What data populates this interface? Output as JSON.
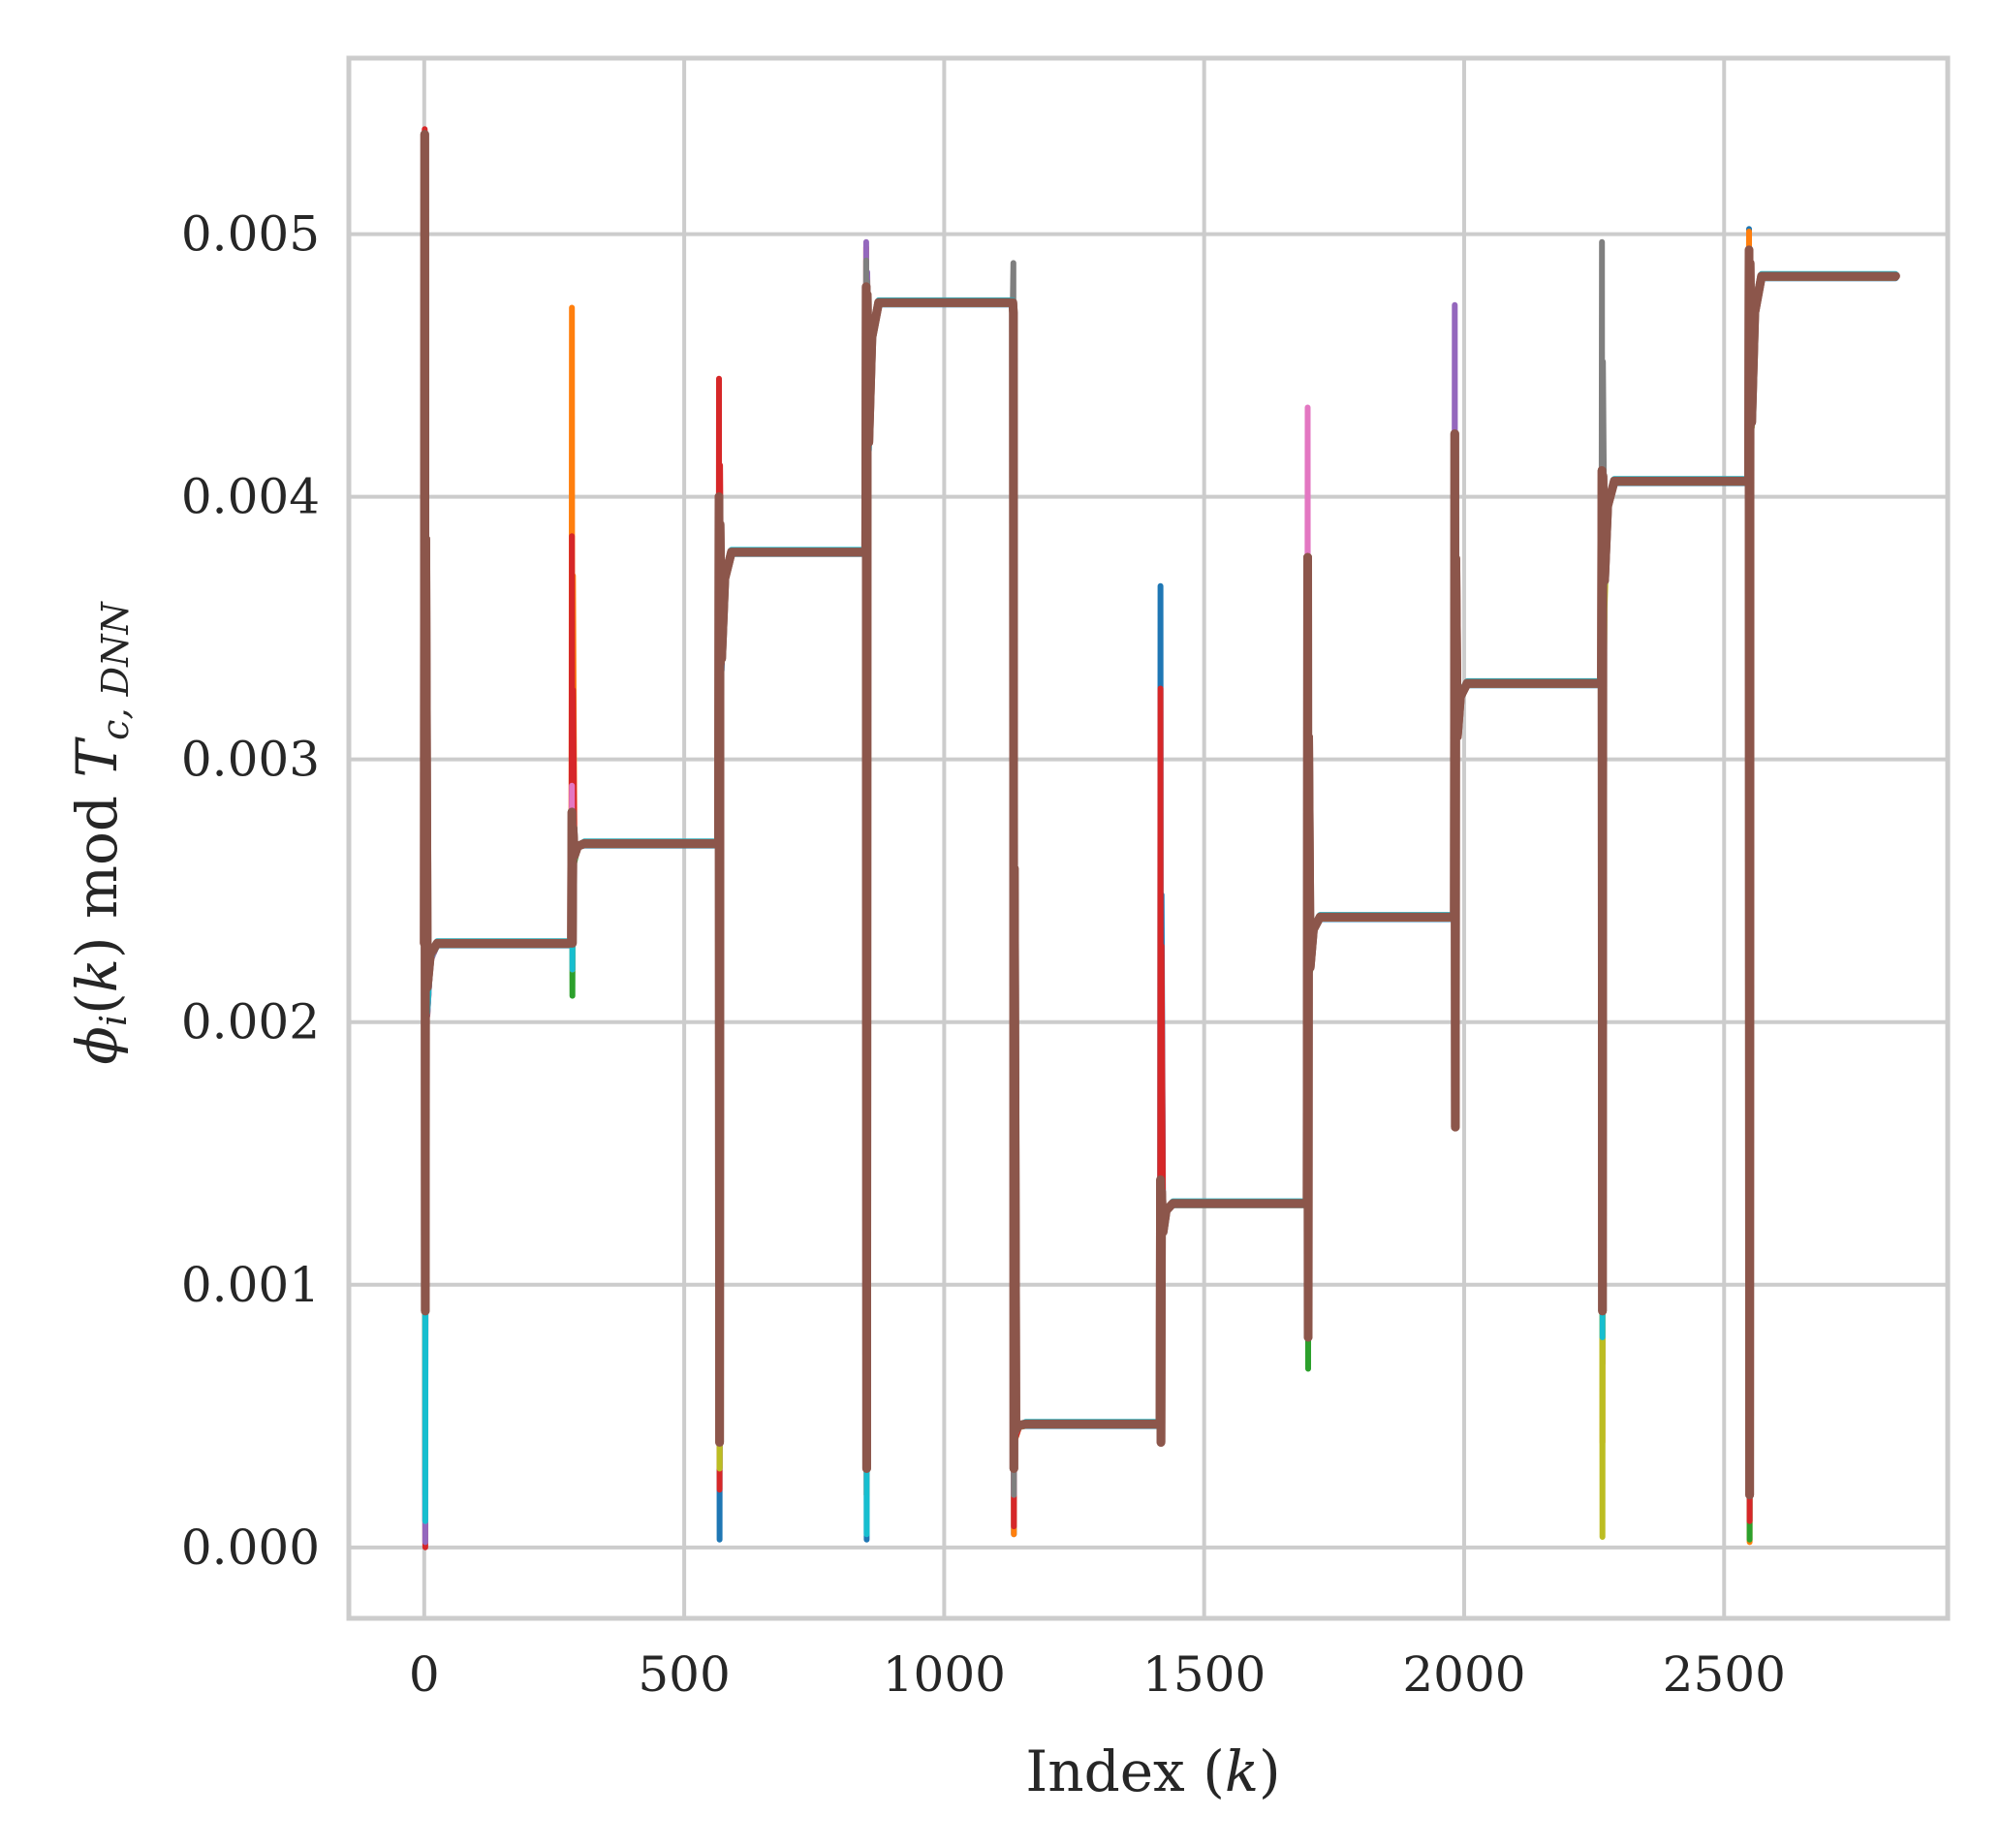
{
  "chart_data": {
    "type": "line",
    "title": "",
    "xlabel": "Index (k)",
    "ylabel": "φ_i(k) mod T_c,DNN",
    "xlabel_parts": {
      "pre": "Index (",
      "var": "k",
      "post": ")"
    },
    "ylabel_parts": {
      "phi": "ϕ",
      "i": "i",
      "k": "k",
      "mod": "mod",
      "T": "T",
      "sub": "c, DNN"
    },
    "xlim": [
      -145,
      2930
    ],
    "ylim": [
      -0.00027,
      0.00567
    ],
    "xticks": [
      0,
      500,
      1000,
      1500,
      2000,
      2500
    ],
    "xtick_labels": [
      "0",
      "500",
      "1000",
      "1500",
      "2000",
      "2500"
    ],
    "yticks": [
      0.0,
      0.001,
      0.002,
      0.003,
      0.004,
      0.005
    ],
    "ytick_labels": [
      "0.000",
      "0.001",
      "0.002",
      "0.003",
      "0.004",
      "0.005"
    ],
    "grid": true,
    "legend": "none",
    "segments": [
      {
        "x_start": 0,
        "x_end": 283,
        "level": 0.0023
      },
      {
        "x_start": 283,
        "x_end": 566,
        "level": 0.00268
      },
      {
        "x_start": 566,
        "x_end": 849,
        "level": 0.00379
      },
      {
        "x_start": 849,
        "x_end": 1132,
        "level": 0.00474
      },
      {
        "x_start": 1132,
        "x_end": 1415,
        "level": 0.00047
      },
      {
        "x_start": 1415,
        "x_end": 1698,
        "level": 0.00131
      },
      {
        "x_start": 1698,
        "x_end": 1981,
        "level": 0.0024
      },
      {
        "x_start": 1981,
        "x_end": 2264,
        "level": 0.00329
      },
      {
        "x_start": 2264,
        "x_end": 2547,
        "level": 0.00406
      },
      {
        "x_start": 2547,
        "x_end": 2830,
        "level": 0.00484
      }
    ],
    "series": [
      {
        "color": "#1f77b4",
        "transients": [
          [
            0.0001,
            0.0028
          ],
          [
            0.0022,
            0.0027
          ],
          [
            3e-05,
            0.0035
          ],
          [
            3e-05,
            0.0048
          ],
          [
            5e-05,
            0.004
          ],
          [
            0.0006,
            0.00366
          ],
          [
            0.0013,
            0.0025
          ],
          [
            0.0024,
            0.0033
          ],
          [
            0.0007,
            0.0041
          ],
          [
            0.0001,
            0.00502
          ]
        ]
      },
      {
        "color": "#ff7f0e",
        "transients": [
          [
            0.0003,
            0.00472
          ],
          [
            0.0022,
            0.00472
          ],
          [
            0.0003,
            0.0039
          ],
          [
            0.0002,
            0.00495
          ],
          [
            5e-05,
            0.0047
          ],
          [
            0.0005,
            0.0015
          ],
          [
            0.0012,
            0.0026
          ],
          [
            0.0022,
            0.0034
          ],
          [
            0.0004,
            0.0041
          ],
          [
            2e-05,
            0.00501
          ]
        ]
      },
      {
        "color": "#2ca02c",
        "transients": [
          [
            0.0002,
            0.0044
          ],
          [
            0.0021,
            0.0028
          ],
          [
            0.0003,
            0.0038
          ],
          [
            0.0004,
            0.0048
          ],
          [
            0.0003,
            0.004
          ],
          [
            0.0006,
            0.0014
          ],
          [
            0.00068,
            0.0026
          ],
          [
            0.0023,
            0.0034
          ],
          [
            0.0018,
            0.00432
          ],
          [
            3e-05,
            0.0046
          ]
        ]
      },
      {
        "color": "#d62728",
        "transients": [
          [
            0.0,
            0.0054
          ],
          [
            0.0022,
            0.00385
          ],
          [
            0.00022,
            0.00445
          ],
          [
            0.0002,
            0.0048
          ],
          [
            8e-05,
            0.0047
          ],
          [
            0.00048,
            0.00327
          ],
          [
            0.0015,
            0.0025
          ],
          [
            0.0026,
            0.0033
          ],
          [
            0.0009,
            0.0041
          ],
          [
            0.0001,
            0.0049
          ]
        ]
      },
      {
        "color": "#9467bd",
        "transients": [
          [
            2e-05,
            0.0035
          ],
          [
            0.0022,
            0.0028
          ],
          [
            0.0004,
            0.0039
          ],
          [
            0.0003,
            0.00497
          ],
          [
            0.0002,
            0.0046
          ],
          [
            0.0005,
            0.0014
          ],
          [
            0.0011,
            0.0027
          ],
          [
            0.0024,
            0.00473
          ],
          [
            0.0009,
            0.0043
          ],
          [
            0.0002,
            0.0049
          ]
        ]
      },
      {
        "color": "#8c564b",
        "transients": [
          [
            0.0009,
            0.00538
          ],
          [
            0.0023,
            0.0028
          ],
          [
            0.0004,
            0.004
          ],
          [
            0.0003,
            0.0048
          ],
          [
            0.0003,
            0.0047
          ],
          [
            0.0004,
            0.0014
          ],
          [
            0.0008,
            0.00377
          ],
          [
            0.0016,
            0.00424
          ],
          [
            0.0009,
            0.0041
          ],
          [
            0.0002,
            0.00494
          ]
        ]
      },
      {
        "color": "#e377c2",
        "transients": [
          [
            0.0001,
            0.003
          ],
          [
            0.0022,
            0.0029
          ],
          [
            0.0004,
            0.0038
          ],
          [
            0.0006,
            0.0048
          ],
          [
            0.0004,
            0.0046
          ],
          [
            0.0005,
            0.0013
          ],
          [
            0.001,
            0.00434
          ],
          [
            0.0022,
            0.0033
          ],
          [
            0.0008,
            0.0041
          ],
          [
            0.0002,
            0.0048
          ]
        ]
      },
      {
        "color": "#7f7f7f",
        "transients": [
          [
            0.0004,
            0.0032
          ],
          [
            0.0022,
            0.0028
          ],
          [
            0.0005,
            0.0039
          ],
          [
            0.0004,
            0.0049
          ],
          [
            0.0002,
            0.00489
          ],
          [
            0.0006,
            0.0013
          ],
          [
            0.0013,
            0.0025
          ],
          [
            0.0023,
            0.0033
          ],
          [
            0.001,
            0.00497
          ],
          [
            0.0003,
            0.0049
          ]
        ]
      },
      {
        "color": "#bcbd22",
        "transients": [
          [
            0.0003,
            0.003
          ],
          [
            0.0022,
            0.0028
          ],
          [
            0.0003,
            0.0039
          ],
          [
            0.0004,
            0.0048
          ],
          [
            0.0003,
            0.0047
          ],
          [
            0.0005,
            0.0014
          ],
          [
            0.0012,
            0.0025
          ],
          [
            0.0022,
            0.0033
          ],
          [
            4e-05,
            0.0017
          ],
          [
            0.0002,
            0.0049
          ]
        ]
      },
      {
        "color": "#17becf",
        "transients": [
          [
            0.0001,
            0.003
          ],
          [
            0.0022,
            0.0027
          ],
          [
            0.0004,
            0.0039
          ],
          [
            5e-05,
            0.0038
          ],
          [
            0.0003,
            0.0047
          ],
          [
            0.0005,
            0.0014
          ],
          [
            0.0012,
            0.0025
          ],
          [
            0.0022,
            0.0033
          ],
          [
            0.0008,
            0.0041
          ],
          [
            0.0002,
            0.0049
          ]
        ]
      }
    ]
  }
}
